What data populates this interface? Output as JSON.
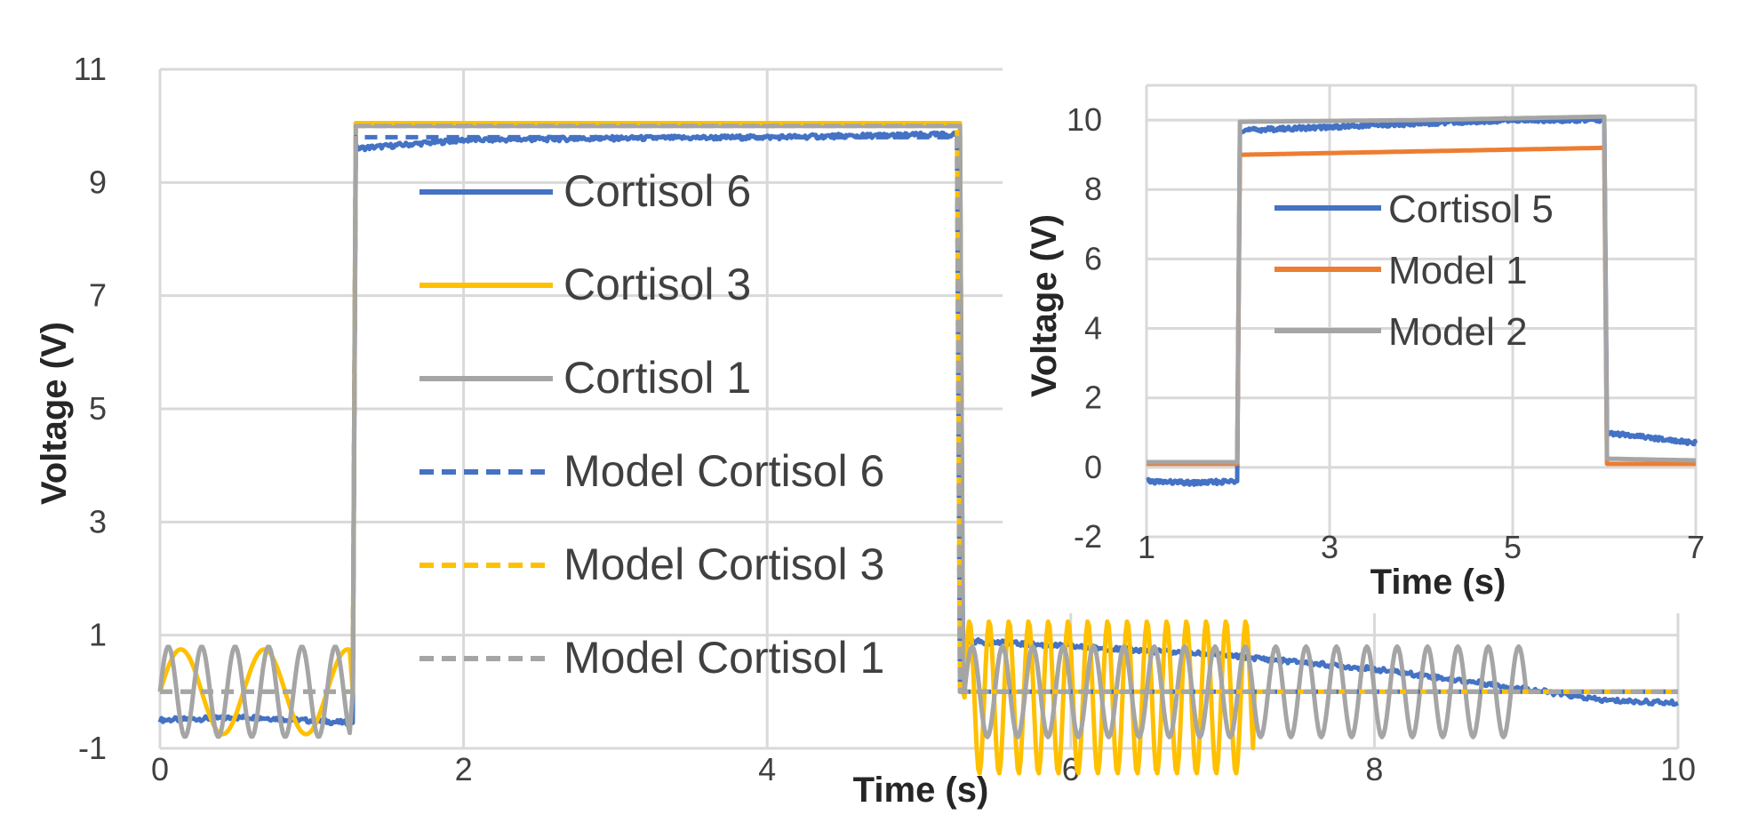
{
  "chart_data": [
    {
      "id": "main",
      "type": "line",
      "title": "",
      "xlabel": "Time (s)",
      "ylabel": "Voltage (V)",
      "xlim": [
        0,
        10
      ],
      "ylim": [
        -1,
        11
      ],
      "xticks": [
        0,
        2,
        4,
        6,
        8,
        10
      ],
      "yticks": [
        -1,
        1,
        3,
        5,
        7,
        9,
        11
      ],
      "grid": true,
      "legend_position": "center-left",
      "series": [
        {
          "name": "Cortisol 6",
          "color": "#4472C4",
          "dash": "solid",
          "width": 5,
          "noise": 0.04,
          "points": [
            [
              0,
              -0.5
            ],
            [
              0.6,
              -0.45
            ],
            [
              1.25,
              -0.55
            ],
            [
              1.27,
              -0.55
            ],
            [
              1.29,
              9.6
            ],
            [
              2,
              9.75
            ],
            [
              3,
              9.78
            ],
            [
              4,
              9.8
            ],
            [
              5.25,
              9.85
            ],
            [
              5.27,
              9.85
            ],
            [
              5.29,
              0.9
            ],
            [
              6,
              0.8
            ],
            [
              7,
              0.65
            ],
            [
              8,
              0.4
            ],
            [
              9,
              0.05
            ],
            [
              9.5,
              -0.15
            ],
            [
              10,
              -0.2
            ]
          ]
        },
        {
          "name": "Cortisol 3",
          "color": "#FFC000",
          "dash": "solid",
          "width": 5,
          "osc": [
            {
              "t0": 0,
              "t1": 1.25,
              "amp": 0.75,
              "period": 0.55,
              "offset": 0
            },
            {
              "t0": 5.3,
              "t1": 7.2,
              "amp": 1.35,
              "period": 0.13,
              "offset": -0.1
            }
          ],
          "points": [
            [
              0,
              0
            ],
            [
              1.25,
              0
            ],
            [
              1.27,
              0
            ],
            [
              1.29,
              10.05
            ],
            [
              3,
              10.05
            ],
            [
              5.25,
              10.05
            ],
            [
              5.27,
              10.05
            ],
            [
              5.29,
              0
            ],
            [
              7.2,
              0
            ],
            [
              8,
              0
            ],
            [
              10,
              0
            ]
          ]
        },
        {
          "name": "Cortisol 1",
          "color": "#A5A5A5",
          "dash": "solid",
          "width": 5,
          "osc": [
            {
              "t0": 0,
              "t1": 1.25,
              "amp": 0.8,
              "period": 0.22,
              "offset": 0
            },
            {
              "t0": 5.3,
              "t1": 9.0,
              "amp": 0.8,
              "period": 0.2,
              "offset": 0
            }
          ],
          "points": [
            [
              0,
              0
            ],
            [
              1.25,
              0
            ],
            [
              1.27,
              0
            ],
            [
              1.29,
              10.0
            ],
            [
              3,
              10.0
            ],
            [
              5.25,
              10.0
            ],
            [
              5.27,
              10.0
            ],
            [
              5.29,
              0
            ],
            [
              9.0,
              0
            ],
            [
              10,
              0
            ]
          ]
        },
        {
          "name": "Model Cortisol 6",
          "color": "#4472C4",
          "dash": "dashed",
          "width": 5,
          "points": [
            [
              0,
              0
            ],
            [
              1.27,
              0
            ],
            [
              1.29,
              9.8
            ],
            [
              5.25,
              9.8
            ],
            [
              5.27,
              0
            ],
            [
              10,
              0
            ]
          ]
        },
        {
          "name": "Model Cortisol 3",
          "color": "#FFC000",
          "dash": "dashed",
          "width": 5,
          "points": [
            [
              0,
              0
            ],
            [
              1.27,
              0
            ],
            [
              1.29,
              10.05
            ],
            [
              5.25,
              10.05
            ],
            [
              5.27,
              0
            ],
            [
              10,
              0
            ]
          ]
        },
        {
          "name": "Model Cortisol 1",
          "color": "#A5A5A5",
          "dash": "dashed",
          "width": 5,
          "points": [
            [
              0,
              0
            ],
            [
              1.27,
              0
            ],
            [
              1.29,
              10.0
            ],
            [
              5.25,
              10.0
            ],
            [
              5.27,
              0
            ],
            [
              10,
              0
            ]
          ]
        }
      ]
    },
    {
      "id": "inset",
      "type": "line",
      "title": "",
      "xlabel": "Time (s)",
      "ylabel": "Voltage (V)",
      "xlim": [
        1,
        7
      ],
      "ylim": [
        -2,
        11
      ],
      "xticks": [
        1,
        3,
        5,
        7
      ],
      "yticks": [
        -2,
        0,
        2,
        4,
        6,
        8,
        10
      ],
      "grid": true,
      "legend_position": "center",
      "series": [
        {
          "name": "Cortisol 5",
          "color": "#4472C4",
          "dash": "solid",
          "width": 5,
          "noise": 0.06,
          "points": [
            [
              1,
              -0.4
            ],
            [
              1.5,
              -0.45
            ],
            [
              1.97,
              -0.4
            ],
            [
              1.99,
              -0.4
            ],
            [
              2.02,
              9.7
            ],
            [
              3,
              9.8
            ],
            [
              4,
              9.9
            ],
            [
              5,
              10.0
            ],
            [
              5.98,
              10.0
            ],
            [
              6.0,
              10.0
            ],
            [
              6.03,
              1.0
            ],
            [
              6.5,
              0.85
            ],
            [
              7,
              0.7
            ]
          ]
        },
        {
          "name": "Model 1",
          "color": "#ED7D31",
          "dash": "solid",
          "width": 5,
          "points": [
            [
              1,
              0.1
            ],
            [
              1.99,
              0.1
            ],
            [
              2.02,
              9.0
            ],
            [
              4,
              9.1
            ],
            [
              6.0,
              9.2
            ],
            [
              6.03,
              0.1
            ],
            [
              7,
              0.1
            ]
          ]
        },
        {
          "name": "Model 2",
          "color": "#A5A5A5",
          "dash": "solid",
          "width": 5,
          "points": [
            [
              1,
              0.15
            ],
            [
              1.99,
              0.15
            ],
            [
              2.02,
              9.95
            ],
            [
              4,
              10.0
            ],
            [
              6.0,
              10.1
            ],
            [
              6.03,
              0.25
            ],
            [
              7,
              0.2
            ]
          ]
        }
      ]
    }
  ]
}
